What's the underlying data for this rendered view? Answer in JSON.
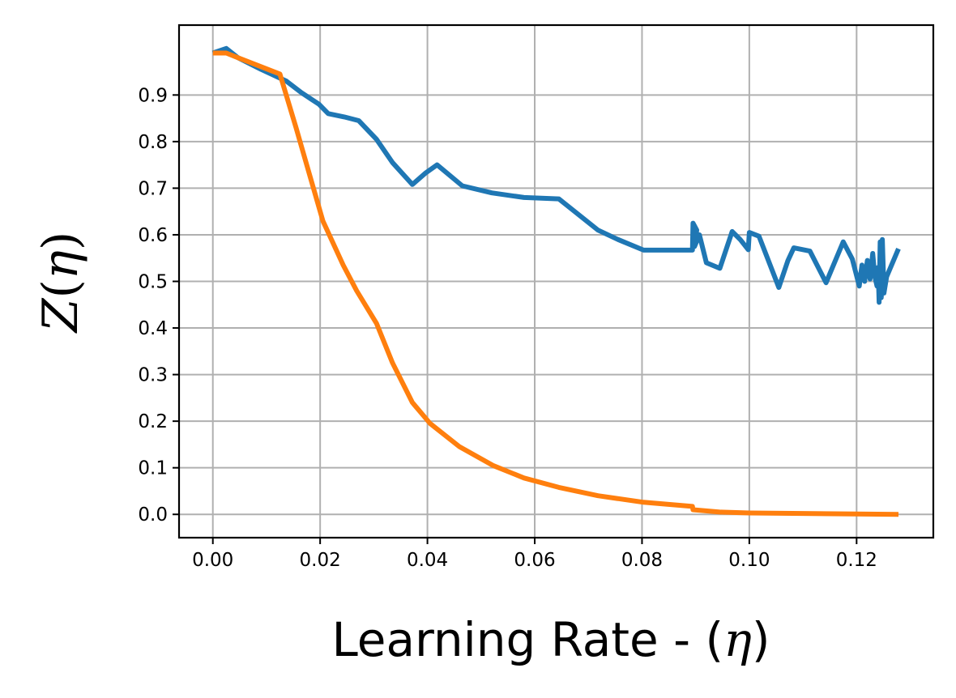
{
  "chart_data": {
    "type": "line",
    "title": "",
    "xlabel_text": "Learning Rate - (",
    "xlabel_symbol": "η",
    "xlabel_close": ")",
    "ylabel_script": "Z",
    "ylabel_paren_open": "(",
    "ylabel_symbol": "η",
    "ylabel_paren_close": ")",
    "xlim": [
      -0.0063,
      0.1343
    ],
    "ylim": [
      -0.05,
      1.05
    ],
    "xticks": [
      0.0,
      0.02,
      0.04,
      0.06,
      0.08,
      0.1,
      0.12
    ],
    "xtick_labels": [
      "0.00",
      "0.02",
      "0.04",
      "0.06",
      "0.08",
      "0.10",
      "0.12"
    ],
    "yticks": [
      0.0,
      0.1,
      0.2,
      0.3,
      0.4,
      0.5,
      0.6,
      0.7,
      0.8,
      0.9
    ],
    "ytick_labels": [
      "0.0",
      "0.1",
      "0.2",
      "0.3",
      "0.4",
      "0.5",
      "0.6",
      "0.7",
      "0.8",
      "0.9"
    ],
    "grid": true,
    "series": [
      {
        "color": "#1f77b4",
        "points": [
          [
            0.0,
            0.99
          ],
          [
            0.0025,
            1.0
          ],
          [
            0.0047,
            0.98
          ],
          [
            0.009,
            0.955
          ],
          [
            0.0137,
            0.93
          ],
          [
            0.0165,
            0.905
          ],
          [
            0.0198,
            0.88
          ],
          [
            0.0215,
            0.86
          ],
          [
            0.0245,
            0.853
          ],
          [
            0.0272,
            0.845
          ],
          [
            0.0305,
            0.805
          ],
          [
            0.0335,
            0.755
          ],
          [
            0.0372,
            0.708
          ],
          [
            0.0397,
            0.733
          ],
          [
            0.0418,
            0.75
          ],
          [
            0.0465,
            0.705
          ],
          [
            0.052,
            0.69
          ],
          [
            0.058,
            0.68
          ],
          [
            0.0645,
            0.677
          ],
          [
            0.0718,
            0.61
          ],
          [
            0.0755,
            0.59
          ],
          [
            0.0803,
            0.567
          ],
          [
            0.0868,
            0.567
          ],
          [
            0.0894,
            0.567
          ],
          [
            0.0895,
            0.625
          ],
          [
            0.0902,
            0.61
          ],
          [
            0.0898,
            0.575
          ],
          [
            0.0907,
            0.6
          ],
          [
            0.092,
            0.54
          ],
          [
            0.0945,
            0.528
          ],
          [
            0.0968,
            0.607
          ],
          [
            0.0983,
            0.59
          ],
          [
            0.0998,
            0.568
          ],
          [
            0.1,
            0.605
          ],
          [
            0.1018,
            0.597
          ],
          [
            0.1055,
            0.487
          ],
          [
            0.1072,
            0.545
          ],
          [
            0.1083,
            0.572
          ],
          [
            0.1113,
            0.565
          ],
          [
            0.1143,
            0.497
          ],
          [
            0.1175,
            0.585
          ],
          [
            0.1192,
            0.548
          ],
          [
            0.1205,
            0.49
          ],
          [
            0.121,
            0.535
          ],
          [
            0.1215,
            0.5
          ],
          [
            0.122,
            0.545
          ],
          [
            0.1225,
            0.505
          ],
          [
            0.123,
            0.56
          ],
          [
            0.1234,
            0.51
          ],
          [
            0.1238,
            0.49
          ],
          [
            0.124,
            0.53
          ],
          [
            0.1242,
            0.455
          ],
          [
            0.1244,
            0.585
          ],
          [
            0.1246,
            0.465
          ],
          [
            0.1248,
            0.59
          ],
          [
            0.1251,
            0.475
          ],
          [
            0.1256,
            0.51
          ],
          [
            0.1278,
            0.57
          ]
        ]
      },
      {
        "color": "#ff7f0e",
        "points": [
          [
            0.0,
            0.99
          ],
          [
            0.0025,
            0.99
          ],
          [
            0.0047,
            0.98
          ],
          [
            0.0125,
            0.945
          ],
          [
            0.0155,
            0.83
          ],
          [
            0.018,
            0.73
          ],
          [
            0.0205,
            0.63
          ],
          [
            0.0243,
            0.535
          ],
          [
            0.0268,
            0.48
          ],
          [
            0.0305,
            0.41
          ],
          [
            0.0335,
            0.325
          ],
          [
            0.0372,
            0.24
          ],
          [
            0.0405,
            0.195
          ],
          [
            0.046,
            0.145
          ],
          [
            0.0522,
            0.105
          ],
          [
            0.058,
            0.078
          ],
          [
            0.0645,
            0.058
          ],
          [
            0.0718,
            0.04
          ],
          [
            0.0803,
            0.026
          ],
          [
            0.0894,
            0.017
          ],
          [
            0.0895,
            0.01
          ],
          [
            0.0945,
            0.005
          ],
          [
            0.1,
            0.003
          ],
          [
            0.11,
            0.002
          ],
          [
            0.12,
            0.001
          ],
          [
            0.1278,
            0.0
          ]
        ]
      }
    ]
  }
}
